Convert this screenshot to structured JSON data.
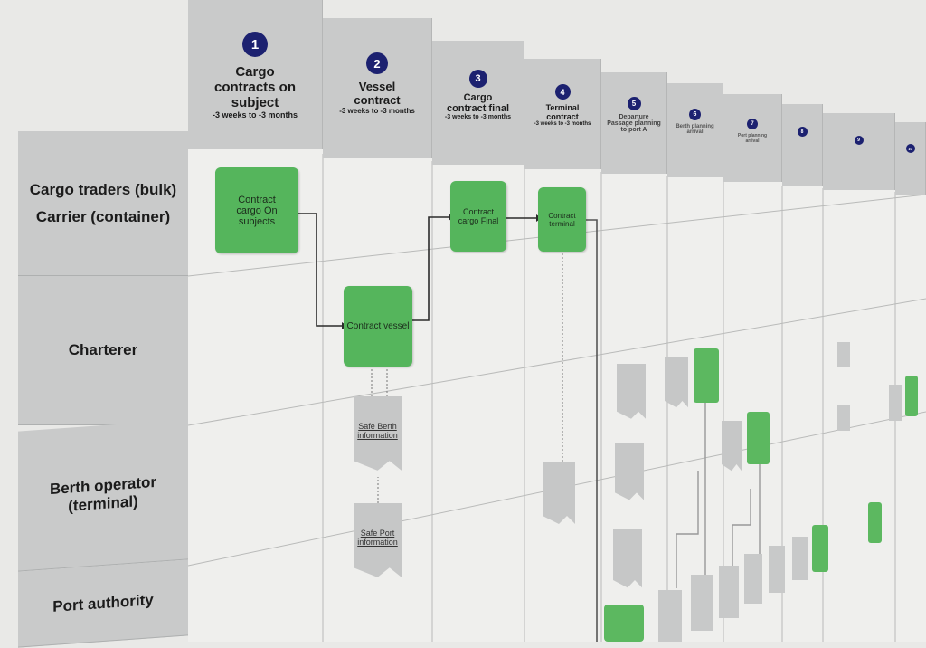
{
  "columns": [
    {
      "num": "1",
      "title": "Cargo contracts on subject",
      "sub": "-3 weeks to -3 months"
    },
    {
      "num": "2",
      "title": "Vessel contract",
      "sub": "-3 weeks to -3 months"
    },
    {
      "num": "3",
      "title": "Cargo contract final",
      "sub": "-3 weeks to -3 months"
    },
    {
      "num": "4",
      "title": "Terminal contract",
      "sub": "-3 weeks to -3 months"
    },
    {
      "num": "5",
      "title": "Departure Passage planning to port A",
      "sub": ""
    },
    {
      "num": "6",
      "title": "Berth planning arrival",
      "sub": ""
    },
    {
      "num": "7",
      "title": "Port planning arrival",
      "sub": ""
    },
    {
      "num": "8",
      "title": "",
      "sub": ""
    },
    {
      "num": "9",
      "title": "",
      "sub": ""
    },
    {
      "num": "10",
      "title": "",
      "sub": ""
    }
  ],
  "lanes": [
    {
      "label": "Cargo traders (bulk)\nCarrier (container)"
    },
    {
      "label": "Charterer"
    },
    {
      "label": "Berth operator\n(terminal)"
    },
    {
      "label": "Port authority"
    }
  ],
  "tasks": {
    "contract_cargo_subjects": "Contract cargo On subjects",
    "contract_vessel": "Contract vessel",
    "contract_cargo_final": "Contract cargo Final",
    "contract_terminal": "Contract terminal"
  },
  "documents": {
    "safe_berth": "Safe Berth information",
    "safe_port": "Safe Port information"
  },
  "colors": {
    "task": "#55b55c",
    "document": "#c6c7c7",
    "header": "#c9caca",
    "step_circle": "#1c2170"
  }
}
